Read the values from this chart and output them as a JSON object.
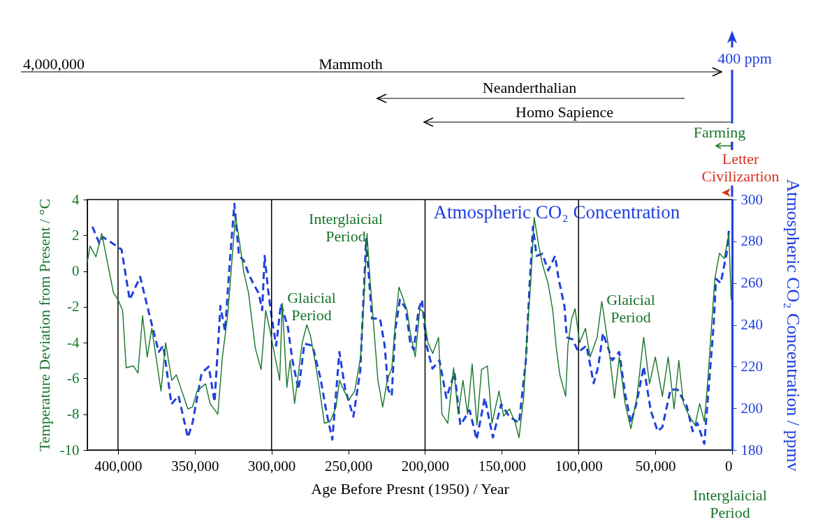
{
  "chart_data": {
    "type": "line",
    "xlabel": "Age Before Presnt (1950) / Year",
    "ylabel": "Temperature Deviation from Present / °C",
    "y2label": "Atmospheric CO₂ Concentration / ppmv",
    "xlim": [
      420000,
      0
    ],
    "xticks": [
      {
        "value": 400000,
        "label": "400,000"
      },
      {
        "value": 350000,
        "label": "350,000"
      },
      {
        "value": 300000,
        "label": "300,000"
      },
      {
        "value": 250000,
        "label": "250,000"
      },
      {
        "value": 200000,
        "label": "200,000"
      },
      {
        "value": 150000,
        "label": "150,000"
      },
      {
        "value": 100000,
        "label": "100,000"
      },
      {
        "value": 50000,
        "label": "50,000"
      },
      0
    ],
    "ylim": [
      -10,
      4
    ],
    "yticks": [
      -10,
      -8,
      -6,
      -4,
      -2,
      0,
      2,
      4
    ],
    "y2lim": [
      180,
      300
    ],
    "y2ticks": [
      180,
      200,
      220,
      240,
      260,
      280,
      300
    ],
    "ref_lines": [
      {
        "axis": "x",
        "value": 400000
      },
      {
        "axis": "x",
        "value": 300000
      },
      {
        "axis": "x",
        "value": 200000
      },
      {
        "axis": "x",
        "value": 100000
      }
    ],
    "annotations": [
      "4,000,000",
      "Mammoth",
      "Neanderthalian",
      "Homo Sapience",
      "Farming",
      "Letter Civilizartion",
      "400 ppm",
      "Interglaicial Period",
      "Interglaicial Period",
      "Glaicial Period",
      "Glaicial Period"
    ],
    "series": [
      {
        "color": "#17752a",
        "line_style": "solid",
        "x": [
          420000,
          418200,
          414400,
          410600,
          406000,
          403000,
          400000,
          397000,
          394700,
          390000,
          387000,
          384000,
          381000,
          378000,
          372000,
          369000,
          365000,
          362000,
          354500,
          351500,
          348500,
          343000,
          340000,
          335000,
          332000,
          328500,
          323500,
          321000,
          318000,
          315000,
          310600,
          306800,
          303800,
          300800,
          297700,
          294700,
          293000,
          290000,
          287900,
          285000,
          283100,
          280000,
          277000,
          274700,
          271700,
          268600,
          265600,
          261800,
          258000,
          255700,
          252700,
          249600,
          245800,
          242000,
          239800,
          237800,
          236000,
          233700,
          230700,
          227600,
          224600,
          221600,
          219300,
          217000,
          214800,
          211700,
          209500,
          206400,
          203400,
          201100,
          198100,
          195000,
          191200,
          189000,
          185200,
          181400,
          178400,
          175300,
          172300,
          169300,
          166200,
          163200,
          159400,
          156400,
          151800,
          148800,
          145000,
          141200,
          138800,
          135800,
          133500,
          131200,
          128900,
          125900,
          123600,
          119800,
          116800,
          114500,
          112200,
          108400,
          106900,
          104600,
          102300,
          99300,
          95500,
          92500,
          87900,
          84900,
          82600,
          79600,
          76600,
          73500,
          69700,
          65900,
          62100,
          57600,
          53800,
          50000,
          45400,
          41600,
          37800,
          34700,
          31700,
          27900,
          24100,
          21100,
          18100,
          15800,
          13500,
          11200,
          8200,
          5100,
          2100,
          600
        ],
        "values": [
          0.5,
          1.4,
          0.8,
          2.1,
          0.1,
          -1.2,
          -1.6,
          -2.2,
          -5.4,
          -5.3,
          -5.7,
          -2.5,
          -4.8,
          -3.2,
          -6.7,
          -4.0,
          -6.1,
          -5.8,
          -7.7,
          -7.6,
          -6.7,
          -6.3,
          -7.4,
          -8.0,
          -4.8,
          -2.4,
          3.1,
          1.7,
          -0.1,
          -1.2,
          -4.3,
          -5.5,
          -2.2,
          -3.4,
          -4.8,
          -6.1,
          -1.8,
          -6.5,
          -5.0,
          -7.4,
          -6.1,
          -4.0,
          -3.0,
          -3.6,
          -5.0,
          -6.7,
          -8.5,
          -8.4,
          -7.6,
          -6.1,
          -6.7,
          -7.2,
          -6.7,
          -4.8,
          -1.6,
          2.1,
          -0.3,
          -2.8,
          -6.1,
          -7.6,
          -6.1,
          -5.4,
          -2.8,
          -0.9,
          -1.4,
          -2.2,
          -3.5,
          -4.8,
          -2.1,
          -2.3,
          -4.0,
          -4.6,
          -3.7,
          -8.0,
          -8.5,
          -5.4,
          -8.0,
          -6.1,
          -8.0,
          -5.2,
          -8.6,
          -5.5,
          -5.3,
          -8.5,
          -6.7,
          -8.1,
          -7.7,
          -8.5,
          -9.3,
          -7.1,
          -3.5,
          -0.7,
          3.0,
          1.4,
          0.4,
          -0.7,
          -2.2,
          -4.3,
          -5.8,
          -7.0,
          -4.1,
          -2.7,
          -2.1,
          -4.0,
          -3.2,
          -4.8,
          -3.7,
          -1.7,
          -3.0,
          -4.8,
          -7.1,
          -4.8,
          -7.4,
          -8.8,
          -7.1,
          -3.7,
          -6.3,
          -4.8,
          -7.0,
          -4.8,
          -7.7,
          -5.0,
          -7.4,
          -8.1,
          -8.6,
          -7.4,
          -8.4,
          -6.1,
          -3.2,
          -0.4,
          1.0,
          0.7,
          2.1,
          -1.6
        ]
      },
      {
        "name": "Atmospheric CO₂ Concentration",
        "color": "#1f3fe0",
        "line_style": "dashed",
        "axis": "y2",
        "x": [
          416700,
          412100,
          409800,
          401500,
          397700,
          392400,
          385600,
          380300,
          373500,
          370500,
          365200,
          360600,
          354500,
          351500,
          345500,
          340900,
          337100,
          333300,
          330300,
          327300,
          324200,
          321200,
          318200,
          315200,
          312100,
          308300,
          306100,
          304500,
          302300,
          300000,
          297000,
          293900,
          289400,
          286400,
          282400,
          278600,
          273300,
          268000,
          264200,
          260400,
          255800,
          252000,
          246700,
          242200,
          238400,
          234600,
          229300,
          226300,
          224000,
          221700,
          219500,
          216400,
          212600,
          209600,
          207300,
          204300,
          202000,
          199000,
          195200,
          190600,
          186100,
          180800,
          177000,
          170900,
          166400,
          161100,
          155800,
          150400,
          145100,
          138800,
          134300,
          132000,
          129700,
          127400,
          123600,
          119800,
          115300,
          113000,
          109200,
          107700,
          103900,
          100100,
          94800,
          90200,
          87200,
          84100,
          78000,
          73500,
          69700,
          65900,
          62100,
          57600,
          53000,
          48500,
          45400,
          40100,
          35600,
          29500,
          25700,
          22700,
          18100,
          15000,
          12000,
          10500,
          7400,
          3600,
          2100
        ],
        "values": [
          287,
          279,
          282,
          278,
          276,
          252,
          263,
          247,
          227,
          230,
          202,
          206,
          186,
          193,
          217,
          220,
          203,
          249,
          237,
          269,
          298,
          273,
          271,
          265,
          260,
          255,
          247,
          273,
          257,
          244,
          230,
          250,
          239,
          223,
          209,
          231,
          230,
          214,
          198,
          185,
          227,
          209,
          196,
          218,
          281,
          243,
          243,
          230,
          209,
          206,
          237,
          252,
          248,
          231,
          228,
          247,
          252,
          230,
          219,
          223,
          205,
          217,
          192,
          199,
          185,
          205,
          186,
          202,
          196,
          193,
          223,
          258,
          287,
          273,
          274,
          266,
          273,
          262,
          249,
          234,
          233,
          227,
          230,
          212,
          220,
          236,
          223,
          227,
          207,
          193,
          203,
          220,
          199,
          189,
          191,
          209,
          209,
          201,
          189,
          193,
          183,
          212,
          240,
          262,
          260,
          274,
          285
        ]
      }
    ]
  }
}
